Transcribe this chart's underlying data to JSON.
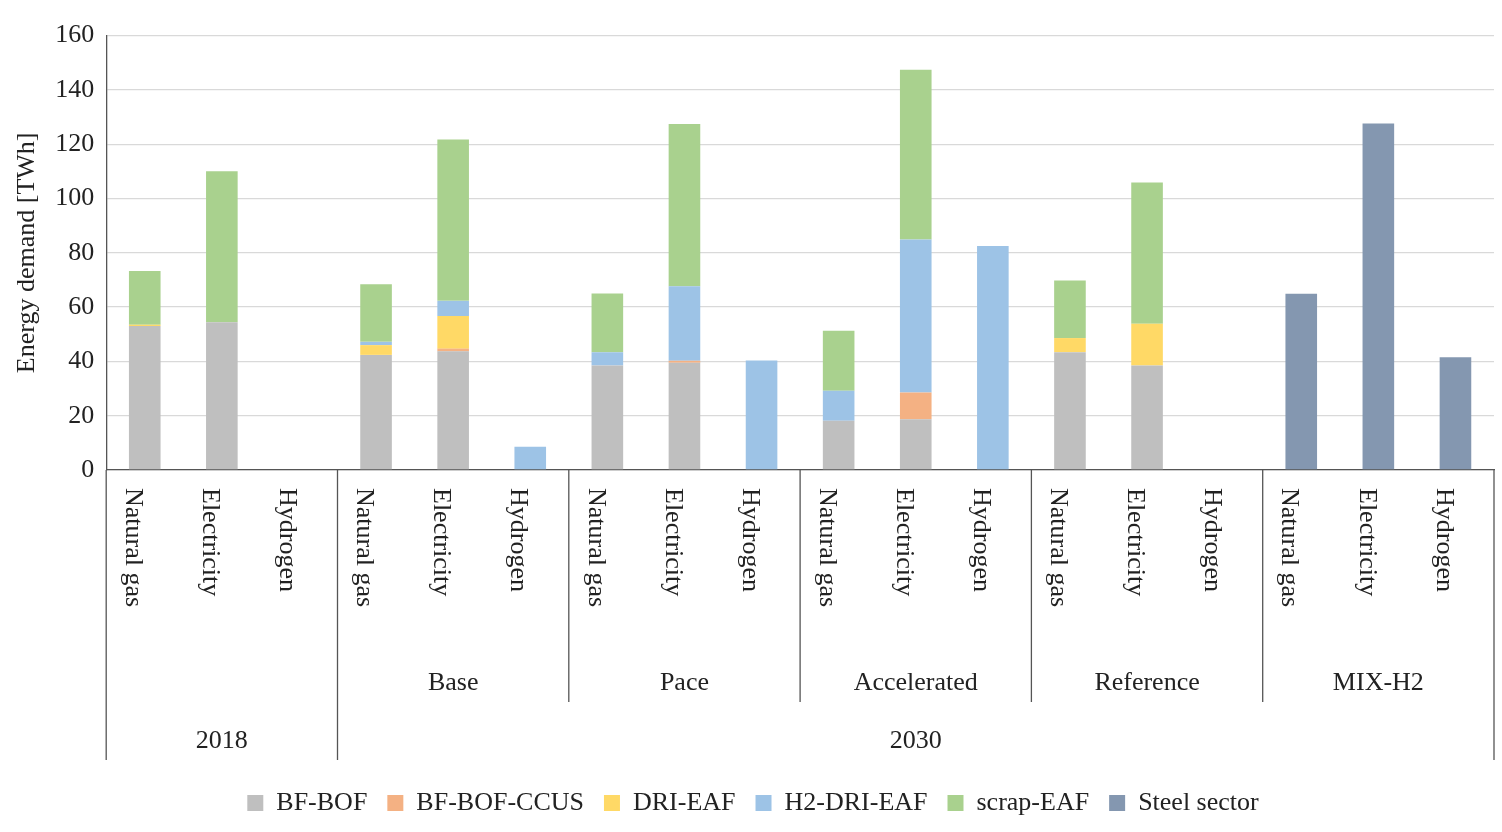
{
  "chart_data": {
    "type": "bar",
    "ylabel": "Energy demand [TWh]",
    "stacked": true,
    "categories": [
      "Natural gas",
      "Electricity",
      "Hydrogen",
      "Natural gas",
      "Electricity",
      "Hydrogen",
      "Natural gas",
      "Electricity",
      "Hydrogen",
      "Natural gas",
      "Electricity",
      "Hydrogen",
      "Natural gas",
      "Electricity",
      "Hydrogen",
      "Natural gas",
      "Electricity",
      "Hydrogen"
    ],
    "series": [
      {
        "name": "BF-BOF",
        "color": "#bfbfbf",
        "values": [
          53,
          54.4,
          null,
          42.4,
          43.7,
          null,
          38.5,
          39.5,
          null,
          18.1,
          18.7,
          null,
          43.4,
          38.5,
          null,
          null,
          null,
          null
        ]
      },
      {
        "name": "BF-BOF-CCUS",
        "color": "#f4b183",
        "values": [
          null,
          null,
          null,
          null,
          1.0,
          null,
          null,
          0.7,
          null,
          null,
          9.8,
          null,
          null,
          null,
          null,
          null,
          null,
          null
        ]
      },
      {
        "name": "DRI-EAF",
        "color": "#ffd966",
        "values": [
          0.5,
          null,
          null,
          3.6,
          12.0,
          null,
          null,
          null,
          null,
          null,
          null,
          null,
          5.2,
          15.4,
          null,
          null,
          null,
          null
        ]
      },
      {
        "name": "H2-DRI-EAF",
        "color": "#9dc3e6",
        "values": [
          null,
          null,
          null,
          1.2,
          5.6,
          8.6,
          4.9,
          27.5,
          40.3,
          11.1,
          56.4,
          82.5,
          null,
          null,
          null,
          null,
          null,
          null
        ]
      },
      {
        "name": "scrap-EAF",
        "color": "#a9d18e",
        "values": [
          19.8,
          55.6,
          null,
          21.2,
          59.4,
          null,
          21.6,
          59.7,
          null,
          22.1,
          62.5,
          null,
          21.2,
          52.0,
          null,
          null,
          null,
          null
        ]
      },
      {
        "name": "Steel sector",
        "color": "#8497b0",
        "values": [
          null,
          null,
          null,
          null,
          null,
          null,
          null,
          null,
          null,
          null,
          null,
          null,
          null,
          null,
          null,
          64.9,
          127.6,
          41.5
        ]
      }
    ],
    "ylim": [
      0,
      160
    ],
    "yticks": [
      0,
      20,
      40,
      60,
      80,
      100,
      120,
      140,
      160
    ],
    "grid": "y",
    "legend": "bottom",
    "annotations": [
      "Base",
      "Pace",
      "Accelerated",
      "Reference",
      "MIX-H2",
      "2018",
      "2030"
    ]
  }
}
